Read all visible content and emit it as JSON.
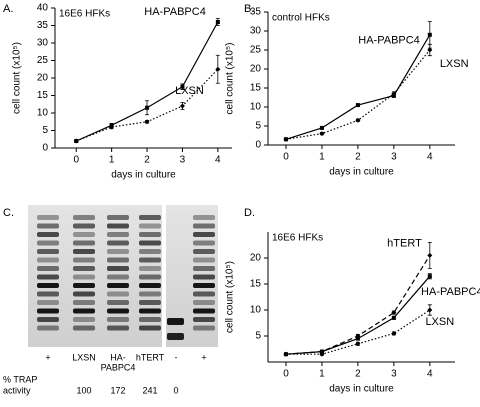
{
  "chart_data": [
    {
      "type": "line",
      "label": "A.",
      "title": "16E6 HFKs",
      "xlabel": "days in culture",
      "ylabel": "cell count (x10⁵)",
      "x": [
        0,
        1,
        2,
        3,
        4
      ],
      "xlim": [
        -0.6,
        4.4
      ],
      "xticks": [
        0,
        1,
        2,
        3,
        4
      ],
      "ylim": [
        0,
        40
      ],
      "yticks": [
        0,
        5,
        10,
        15,
        20,
        25,
        30,
        35,
        40
      ],
      "series": [
        {
          "name": "HA-PABPC4",
          "color": "#000000",
          "dash": "solid",
          "marker": "square",
          "values": [
            2,
            6.5,
            11.5,
            17.5,
            36
          ],
          "errors": [
            0.3,
            0.5,
            2,
            0.8,
            1
          ]
        },
        {
          "name": "LXSN",
          "color": "#000000",
          "dash": "dotted",
          "marker": "diamond",
          "values": [
            2,
            6,
            7.5,
            12,
            22.5
          ],
          "errors": [
            0.3,
            0.5,
            0.4,
            1,
            4
          ]
        }
      ]
    },
    {
      "type": "line",
      "label": "B.",
      "title": "control HFKs",
      "xlabel": "days in culture",
      "ylabel": "cell count (x10⁵)",
      "x": [
        0,
        1,
        2,
        3,
        4
      ],
      "xlim": [
        -0.5,
        4.7
      ],
      "xticks": [
        0,
        1,
        2,
        3,
        4
      ],
      "ylim": [
        0,
        35
      ],
      "yticks": [
        0,
        5,
        10,
        15,
        20,
        25,
        30,
        35
      ],
      "series": [
        {
          "name": "HA-PABPC4",
          "color": "#000000",
          "dash": "solid",
          "marker": "square",
          "values": [
            1.5,
            4.5,
            10.5,
            13,
            29
          ],
          "errors": [
            0.2,
            0.3,
            0.3,
            0.5,
            3.5
          ]
        },
        {
          "name": "LXSN",
          "color": "#000000",
          "dash": "dotted",
          "marker": "diamond",
          "values": [
            1.5,
            3,
            6.5,
            13.5,
            25
          ],
          "errors": [
            0.2,
            0.3,
            0.3,
            0.5,
            1.5
          ]
        }
      ]
    },
    {
      "type": "line",
      "label": "D.",
      "title": "16E6 HFKs",
      "xlabel": "days in culture",
      "ylabel": "cell count (x10⁵)",
      "x": [
        0,
        1,
        2,
        3,
        4
      ],
      "xlim": [
        -0.5,
        4.7
      ],
      "xticks": [
        0,
        1,
        2,
        3,
        4
      ],
      "ylim": [
        0,
        25
      ],
      "yticks": [
        5,
        10,
        15,
        20
      ],
      "series": [
        {
          "name": "hTERT",
          "color": "#000000",
          "dash": "dashed",
          "marker": "diamond",
          "values": [
            1.5,
            2,
            5,
            9.5,
            20.5
          ],
          "errors": [
            0.1,
            0.2,
            0.3,
            0.3,
            2.5
          ]
        },
        {
          "name": "HA-PABPC4",
          "color": "#000000",
          "dash": "solid",
          "marker": "square",
          "values": [
            1.5,
            2,
            4.5,
            8.5,
            16.5
          ],
          "errors": [
            0.1,
            0.2,
            0.3,
            0.3,
            0.5
          ]
        },
        {
          "name": "LXSN",
          "color": "#000000",
          "dash": "dotted",
          "marker": "diamond",
          "values": [
            1.5,
            1.5,
            3.5,
            5.5,
            10
          ],
          "errors": [
            0.1,
            0.2,
            0.3,
            0.3,
            1
          ]
        }
      ]
    }
  ],
  "gel": {
    "label": "C.",
    "lanes": [
      [
        "+"
      ],
      [
        "LXSN"
      ],
      [
        "HA-",
        "PABPC4"
      ],
      [
        "hTERT"
      ],
      [
        "-"
      ],
      [
        "+"
      ]
    ],
    "trap_label": [
      "% TRAP",
      "activity"
    ],
    "trap_values": [
      100,
      172,
      241,
      0
    ]
  }
}
